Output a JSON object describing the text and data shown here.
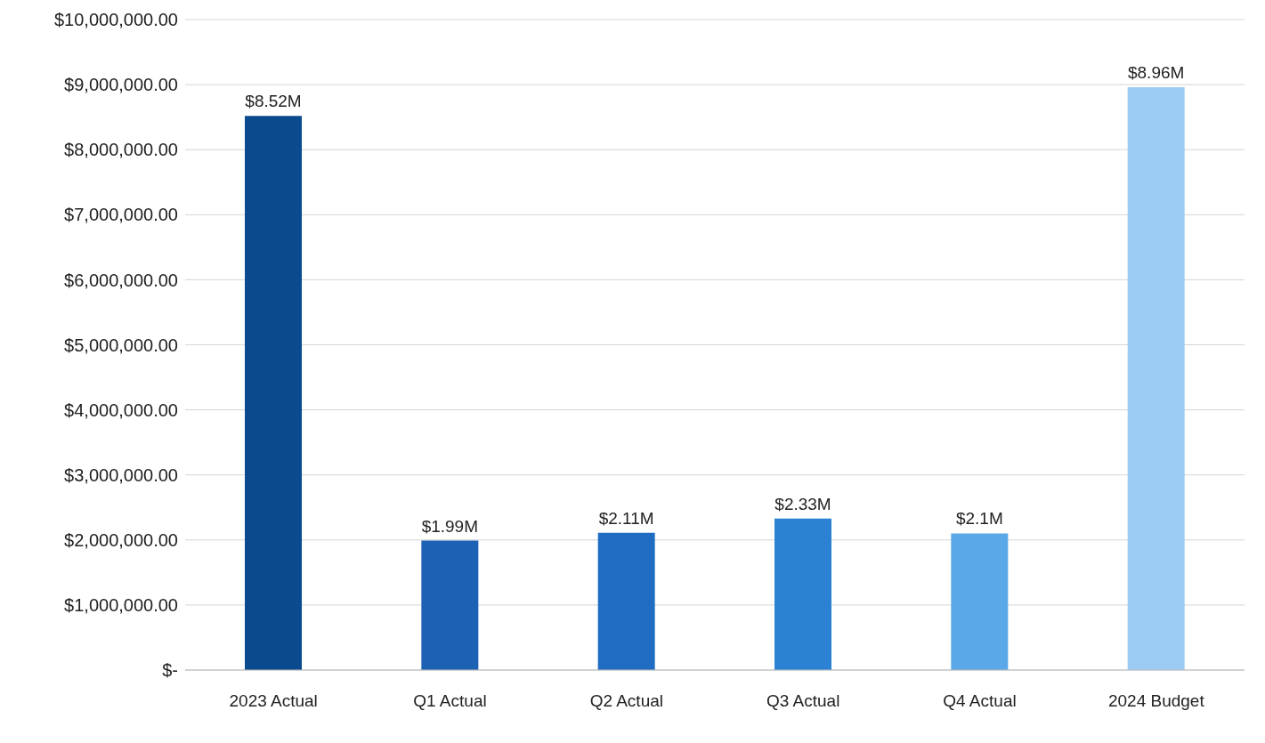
{
  "chart_data": {
    "type": "bar",
    "categories": [
      "2023 Actual",
      "Q1 Actual",
      "Q2 Actual",
      "Q3 Actual",
      "Q4 Actual",
      "2024 Budget"
    ],
    "values": [
      8520000,
      1990000,
      2110000,
      2330000,
      2100000,
      8960000
    ],
    "colors": [
      "#0c4a8e",
      "#1c61b3",
      "#1f6cc2",
      "#2b82d3",
      "#5aa8e8",
      "#9ccbf3"
    ],
    "value_labels": [
      "$8.52M",
      "$1.99M",
      "$2.11M",
      "$2.33M",
      "$2.1M",
      "$8.96M"
    ],
    "ylim": [
      0,
      10000000
    ],
    "yticks": [
      {
        "value": 0,
        "label": "$-"
      },
      {
        "value": 1000000,
        "label": "$1,000,000.00"
      },
      {
        "value": 2000000,
        "label": "$2,000,000.00"
      },
      {
        "value": 3000000,
        "label": "$3,000,000.00"
      },
      {
        "value": 4000000,
        "label": "$4,000,000.00"
      },
      {
        "value": 5000000,
        "label": "$5,000,000.00"
      },
      {
        "value": 6000000,
        "label": "$6,000,000.00"
      },
      {
        "value": 7000000,
        "label": "$7,000,000.00"
      },
      {
        "value": 8000000,
        "label": "$8,000,000.00"
      },
      {
        "value": 9000000,
        "label": "$9,000,000.00"
      },
      {
        "value": 10000000,
        "label": "$10,000,000.00"
      }
    ],
    "grid": "y"
  }
}
